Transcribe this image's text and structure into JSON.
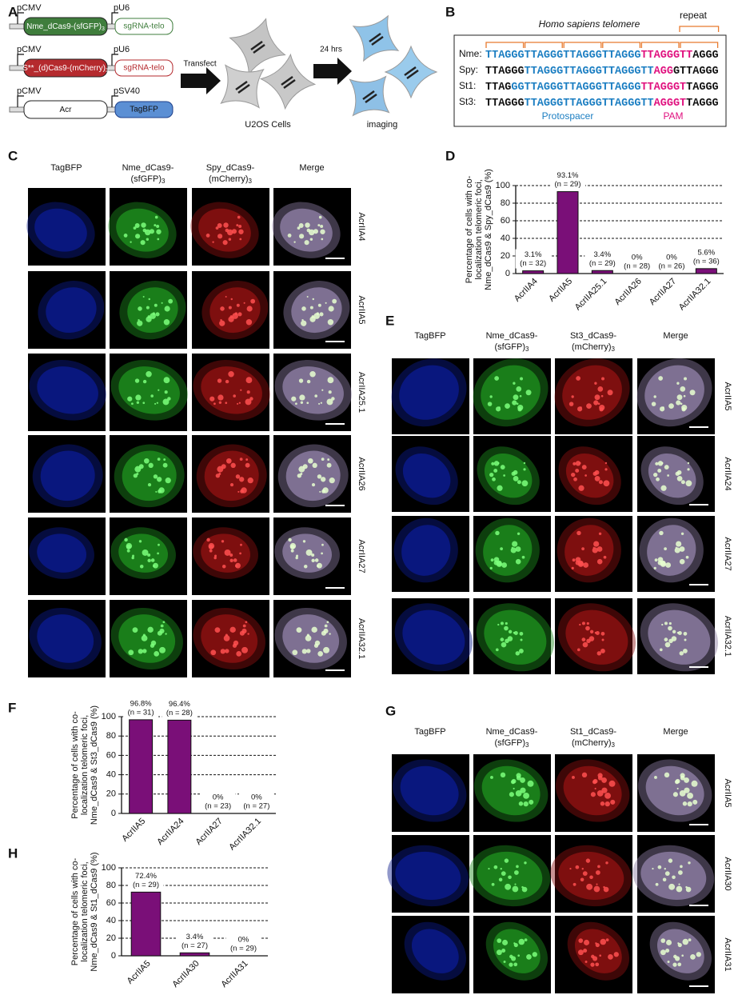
{
  "panel_labels": [
    "A",
    "B",
    "C",
    "D",
    "E",
    "F",
    "G",
    "H"
  ],
  "schematic": {
    "constructs": [
      {
        "promoter": "pCMV",
        "protein": {
          "text": "Nme_dCas9-(sfGFP)",
          "sub": "3"
        },
        "promoter2": "pU6",
        "cassette": "sgRNA-telo"
      },
      {
        "promoter": "pCMV",
        "protein": {
          "text": "S**_(d)Cas9-(mCherry)",
          "sub": "3"
        },
        "promoter2": "pU6",
        "cassette": "sgRNA-telo"
      },
      {
        "promoter": "pCMV",
        "protein": {
          "text": "Acr"
        },
        "promoter2": "pSV40",
        "cassette": "TagBFP"
      }
    ],
    "step1": "Transfect",
    "cells": "U2OS Cells",
    "step2": "24 hrs",
    "result": "imaging"
  },
  "telomere": {
    "title": "Homo sapiens telomere",
    "repeat": "repeat",
    "rows": [
      {
        "name": "Nme:",
        "segments": [
          {
            "text": "TTAGGGTTAGGGTTAGGGTTAGGG",
            "color": "#1b7ec2"
          },
          {
            "text": "TTAGGGTT",
            "color": "#e0117f"
          },
          {
            "text": "AGGG",
            "color": "#111111"
          }
        ]
      },
      {
        "name": "Spy:",
        "segments": [
          {
            "text": "TTAGGG",
            "color": "#111111"
          },
          {
            "text": "TTAGGGTTAGGGTTAGGGTT",
            "color": "#1b7ec2"
          },
          {
            "text": "AGG",
            "color": "#e0117f"
          },
          {
            "text": "GTTAGGG",
            "color": "#111111"
          }
        ]
      },
      {
        "name": "St1:",
        "segments": [
          {
            "text": "TTAG",
            "color": "#111111"
          },
          {
            "text": "GGTTAGGGTTAGGGTTAGGG",
            "color": "#1b7ec2"
          },
          {
            "text": "TTAGGGT",
            "color": "#e0117f"
          },
          {
            "text": "TAGGG",
            "color": "#111111"
          }
        ]
      },
      {
        "name": "St3:",
        "segments": [
          {
            "text": "TTAGGG",
            "color": "#111111"
          },
          {
            "text": "TTAGGGTTAGGGTTAGGGTT",
            "color": "#1b7ec2"
          },
          {
            "text": "AGGGT",
            "color": "#e0117f"
          },
          {
            "text": "TAGGG",
            "color": "#111111"
          }
        ]
      }
    ],
    "protospacer": "Protospacer",
    "pam": "PAM"
  },
  "imaging": [
    {
      "headers": [
        {
          "lines": [
            "TagBFP"
          ]
        },
        {
          "lines": [
            "Nme_dCas9-",
            "(sfGFP)"
          ],
          "sub": "3"
        },
        {
          "lines": [
            "Spy_dCas9-",
            "(mCherry)"
          ],
          "sub": "3"
        },
        {
          "lines": [
            "Merge"
          ]
        }
      ],
      "rows": [
        "AcrIIA4",
        "AcrIIA5",
        "AcrIIA25.1",
        "AcrIIA26",
        "AcrIIA27",
        "AcrIIA32.1"
      ]
    },
    {
      "headers": [
        {
          "lines": [
            "TagBFP"
          ]
        },
        {
          "lines": [
            "Nme_dCas9-",
            "(sfGFP)"
          ],
          "sub": "3"
        },
        {
          "lines": [
            "St3_dCas9-",
            "(mCherry)"
          ],
          "sub": "3"
        },
        {
          "lines": [
            "Merge"
          ]
        }
      ],
      "rows": [
        "AcrIIA5",
        "AcrIIA24",
        "AcrIIA27",
        "AcrIIA32.1"
      ]
    },
    {
      "headers": [
        {
          "lines": [
            "TagBFP"
          ]
        },
        {
          "lines": [
            "Nme_dCas9-",
            "(sfGFP)"
          ],
          "sub": "3"
        },
        {
          "lines": [
            "St1_dCas9-",
            "(mCherry)"
          ],
          "sub": "3"
        },
        {
          "lines": [
            "Merge"
          ]
        }
      ],
      "rows": [
        "AcrIIA5",
        "AcrIIA30",
        "AcrIIA31"
      ]
    }
  ],
  "chart_data": [
    {
      "type": "bar",
      "ylabel": [
        "Percentage of cells with co-",
        "localization telomeric foci,",
        "Nme_dCas9 & Spy_dCas9 (%)"
      ],
      "categories": [
        "AcrIIA4",
        "AcrIIA5",
        "AcrIIA25.1",
        "AcrIIA26",
        "AcrIIA27",
        "AcrIIA32.1"
      ],
      "values": [
        3.1,
        93.1,
        3.4,
        0,
        0,
        5.6
      ],
      "value_labels": [
        "3.1%",
        "93.1%",
        "3.4%",
        "0%",
        "0%",
        "5.6%"
      ],
      "n_labels": [
        "(n = 32)",
        "(n = 29)",
        "(n = 29)",
        "(n = 28)",
        "(n = 26)",
        "(n = 36)"
      ],
      "color": "#7a0f78",
      "ylim": [
        0,
        100
      ],
      "yticks": [
        0,
        20,
        40,
        60,
        80,
        100
      ],
      "grid": true
    },
    {
      "type": "bar",
      "ylabel": [
        "Percentage of cells with co-",
        "localization telomeric foci,",
        "Nme_dCas9 & St3_dCas9 (%)"
      ],
      "categories": [
        "AcrIIA5",
        "AcrIIA24",
        "AcrIIA27",
        "AcrIIA32.1"
      ],
      "values": [
        96.8,
        96.4,
        0,
        0
      ],
      "value_labels": [
        "96.8%",
        "96.4%",
        "0%",
        "0%"
      ],
      "n_labels": [
        "(n = 31)",
        "(n = 28)",
        "(n = 23)",
        "(n = 27)"
      ],
      "color": "#7a0f78",
      "ylim": [
        0,
        100
      ],
      "yticks": [
        0,
        20,
        40,
        60,
        80,
        100
      ],
      "grid": true
    },
    {
      "type": "bar",
      "ylabel": [
        "Percentage of cells with co-",
        "localization telomeric foci,",
        "Nme_dCas9 & St1_dCas9 (%)"
      ],
      "categories": [
        "AcrIIA5",
        "AcrIIA30",
        "AcrIIA31"
      ],
      "values": [
        72.4,
        3.4,
        0
      ],
      "value_labels": [
        "72.4%",
        "3.4%",
        "0%"
      ],
      "n_labels": [
        "(n = 29)",
        "(n = 27)",
        "(n = 29)"
      ],
      "color": "#7a0f78",
      "ylim": [
        0,
        100
      ],
      "yticks": [
        0,
        20,
        40,
        60,
        80,
        100
      ],
      "grid": true
    }
  ]
}
